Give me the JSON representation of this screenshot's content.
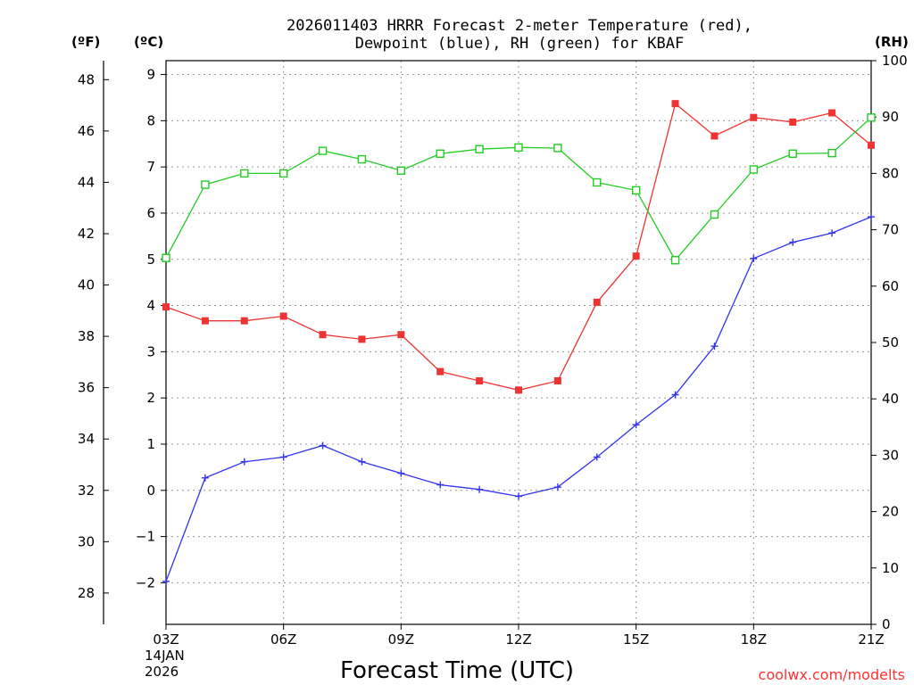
{
  "chart_data": {
    "type": "line",
    "title_line1": "2026011403 HRRR Forecast 2-meter Temperature (red),",
    "title_line2": "Dewpoint (blue), RH (green) for KBAF",
    "xlabel": "Forecast Time (UTC)",
    "x_date_line1": "14JAN",
    "x_date_line2": "2026",
    "credit": "coolwx.com/modelts",
    "left_unit_f": "(ºF)",
    "left_unit_c": "(ºC)",
    "right_unit": "(RH)",
    "x_hours": [
      3,
      4,
      5,
      6,
      7,
      8,
      9,
      10,
      11,
      12,
      13,
      14,
      15,
      16,
      17,
      18,
      19,
      20,
      21
    ],
    "x_tick_hours": [
      3,
      6,
      9,
      12,
      15,
      18,
      21
    ],
    "x_tick_labels": [
      "03Z",
      "06Z",
      "09Z",
      "12Z",
      "15Z",
      "18Z",
      "21Z"
    ],
    "celsius_range": [
      -2.9,
      9.3
    ],
    "celsius_ticks": [
      -2,
      -1,
      0,
      1,
      2,
      3,
      4,
      5,
      6,
      7,
      8,
      9
    ],
    "celsius_tick_labels": [
      "−2",
      "−1",
      "0",
      "1",
      "2",
      "3",
      "4",
      "5",
      "6",
      "7",
      "8",
      "9"
    ],
    "fahrenheit_ticks": [
      28,
      30,
      32,
      34,
      36,
      38,
      40,
      42,
      44,
      46,
      48
    ],
    "fahrenheit_tick_labels": [
      "28",
      "30",
      "32",
      "34",
      "36",
      "38",
      "40",
      "42",
      "44",
      "46",
      "48"
    ],
    "rh_range": [
      0,
      100
    ],
    "rh_ticks": [
      0,
      10,
      20,
      30,
      40,
      50,
      60,
      70,
      80,
      90,
      100
    ],
    "rh_tick_labels": [
      "0",
      "10",
      "20",
      "30",
      "40",
      "50",
      "60",
      "70",
      "80",
      "90",
      "100"
    ],
    "series": [
      {
        "name": "Temperature",
        "axis": "celsius",
        "color": "#ee3333",
        "marker": "filled-square",
        "values": [
          3.97,
          3.67,
          3.67,
          3.77,
          3.37,
          3.27,
          3.37,
          2.57,
          2.37,
          2.17,
          2.37,
          4.07,
          5.07,
          8.37,
          7.67,
          8.07,
          7.97,
          8.17,
          7.47
        ]
      },
      {
        "name": "Dewpoint",
        "axis": "celsius",
        "color": "#3333ee",
        "marker": "plus",
        "values": [
          -1.97,
          0.27,
          0.62,
          0.72,
          0.97,
          0.62,
          0.37,
          0.12,
          0.02,
          -0.13,
          0.07,
          0.72,
          1.42,
          2.07,
          3.12,
          5.02,
          5.37,
          5.57,
          5.92
        ]
      },
      {
        "name": "RH",
        "axis": "rh",
        "color": "#22cc22",
        "marker": "open-square",
        "values": [
          65,
          78,
          80,
          80,
          84,
          82.5,
          80.5,
          83.5,
          84.3,
          84.6,
          84.5,
          78.4,
          77,
          64.6,
          72.7,
          80.7,
          83.5,
          83.6,
          89.9
        ]
      }
    ]
  }
}
